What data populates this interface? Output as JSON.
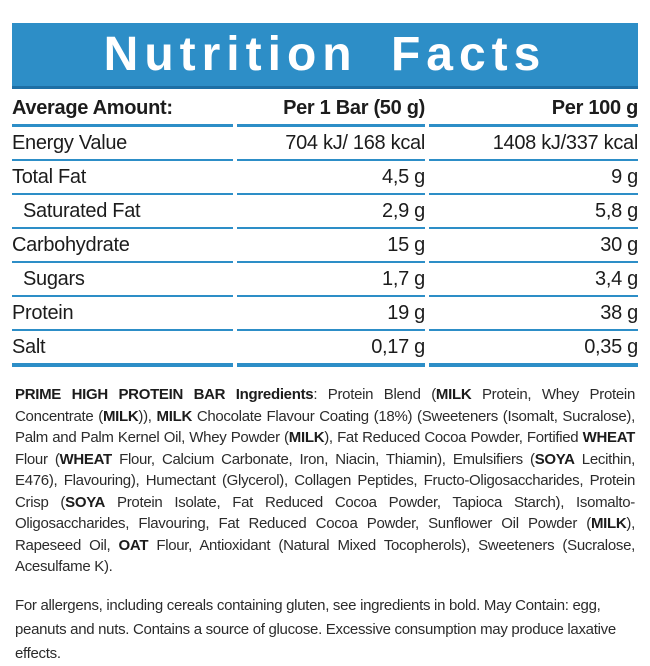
{
  "colors": {
    "accent_blue": "#2D8EC7",
    "accent_blue_dark": "#1D6FA5",
    "title_text": "#FFFFFF",
    "body_text": "#1C1C1C"
  },
  "header": {
    "title": "Nutrition Facts"
  },
  "table": {
    "columns": [
      "Average Amount:",
      "Per 1 Bar (50 g)",
      "Per 100 g"
    ],
    "rows": [
      {
        "label": "Energy Value",
        "per_bar": "704 kJ/ 168 kcal",
        "per_100g": "1408 kJ/337 kcal",
        "indent": false
      },
      {
        "label": "Total Fat",
        "per_bar": "4,5 g",
        "per_100g": "9 g",
        "indent": false
      },
      {
        "label": "Saturated Fat",
        "per_bar": "2,9 g",
        "per_100g": "5,8 g",
        "indent": true
      },
      {
        "label": "Carbohydrate",
        "per_bar": "15 g",
        "per_100g": "30 g",
        "indent": false
      },
      {
        "label": "Sugars",
        "per_bar": "1,7 g",
        "per_100g": "3,4 g",
        "indent": true
      },
      {
        "label": "Protein",
        "per_bar": "19 g",
        "per_100g": "38 g",
        "indent": false
      },
      {
        "label": "Salt",
        "per_bar": "0,17 g",
        "per_100g": "0,35 g",
        "indent": false
      }
    ]
  },
  "ingredients": {
    "segments": [
      {
        "bold": true,
        "text": "PRIME HIGH PROTEIN BAR Ingredients"
      },
      {
        "bold": false,
        "text": ": Protein Blend ("
      },
      {
        "bold": true,
        "text": "MILK"
      },
      {
        "bold": false,
        "text": " Protein, Whey Protein Concentrate ("
      },
      {
        "bold": true,
        "text": "MILK"
      },
      {
        "bold": false,
        "text": ")), "
      },
      {
        "bold": true,
        "text": "MILK"
      },
      {
        "bold": false,
        "text": " Chocolate Flavour Coating (18%) (Sweeteners (Isomalt, Sucralose), Palm and Palm Kernel Oil, Whey Powder ("
      },
      {
        "bold": true,
        "text": "MILK"
      },
      {
        "bold": false,
        "text": "), Fat Reduced Cocoa Powder, Fortified "
      },
      {
        "bold": true,
        "text": "WHEAT"
      },
      {
        "bold": false,
        "text": " Flour ("
      },
      {
        "bold": true,
        "text": "WHEAT"
      },
      {
        "bold": false,
        "text": " Flour, Calcium Carbonate, Iron, Niacin, Thiamin), Emulsifiers ("
      },
      {
        "bold": true,
        "text": "SOYA"
      },
      {
        "bold": false,
        "text": " Lecithin, E476), Flavouring), Humectant (Glycerol), Collagen Peptides, Fructo-Oligosaccharides, Protein Crisp ("
      },
      {
        "bold": true,
        "text": "SOYA"
      },
      {
        "bold": false,
        "text": " Protein Isolate, Fat Reduced Cocoa Powder, Tapioca Starch), Isomalto-Oligosaccharides, Flavouring, Fat Reduced Cocoa Powder, Sunflower Oil Powder ("
      },
      {
        "bold": true,
        "text": "MILK"
      },
      {
        "bold": false,
        "text": "), Rapeseed Oil, "
      },
      {
        "bold": true,
        "text": "OAT"
      },
      {
        "bold": false,
        "text": " Flour, Antioxidant (Natural Mixed Tocopherols), Sweeteners (Sucralose, Acesulfame K)."
      }
    ]
  },
  "allergen_info": {
    "text": "For allergens, including cereals containing gluten, see ingredients in bold. May Contain: egg, peanuts and nuts. Contains a source of glucose. Excessive consumption may produce laxative effects."
  }
}
